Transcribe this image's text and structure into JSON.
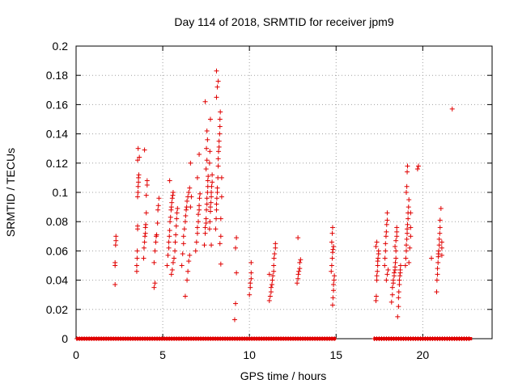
{
  "chart_data": {
    "type": "scatter",
    "title": "Day 114 of 2018, SRMTID for receiver jpm9",
    "xlabel": "GPS time / hours",
    "ylabel": "SRMTID / TECUs",
    "xlim": [
      0,
      24
    ],
    "ylim": [
      0,
      0.2
    ],
    "xticks": [
      0,
      5,
      10,
      15,
      20
    ],
    "xtick_labels": [
      "0",
      "5",
      "10",
      "15",
      "20"
    ],
    "yticks": [
      0,
      0.02,
      0.04,
      0.06,
      0.08,
      0.1,
      0.12,
      0.14,
      0.16,
      0.18,
      0.2
    ],
    "ytick_labels": [
      "0",
      "0.02",
      "0.04",
      "0.06",
      "0.08",
      "0.1",
      "0.12",
      "0.14",
      "0.16",
      "0.18",
      "0.2"
    ],
    "grid": true,
    "marker": "+",
    "color": "#e00000",
    "zero_baseline": [
      {
        "x_start": 0.05,
        "x_end": 14.95,
        "y": 0
      },
      {
        "x_start": 17.2,
        "x_end": 22.8,
        "y": 0
      }
    ],
    "series": [
      {
        "name": "SRMTID",
        "points": [
          [
            2.25,
            0.037
          ],
          [
            2.25,
            0.05
          ],
          [
            2.25,
            0.052
          ],
          [
            2.28,
            0.064
          ],
          [
            2.3,
            0.067
          ],
          [
            2.3,
            0.07
          ],
          [
            3.5,
            0.046
          ],
          [
            3.5,
            0.05
          ],
          [
            3.52,
            0.055
          ],
          [
            3.53,
            0.06
          ],
          [
            3.55,
            0.075
          ],
          [
            3.55,
            0.077
          ],
          [
            3.55,
            0.097
          ],
          [
            3.57,
            0.1
          ],
          [
            3.58,
            0.104
          ],
          [
            3.6,
            0.107
          ],
          [
            3.6,
            0.11
          ],
          [
            3.62,
            0.112
          ],
          [
            3.55,
            0.122
          ],
          [
            3.65,
            0.124
          ],
          [
            3.58,
            0.13
          ],
          [
            3.95,
            0.129
          ],
          [
            3.9,
            0.055
          ],
          [
            3.92,
            0.062
          ],
          [
            3.95,
            0.066
          ],
          [
            3.97,
            0.07
          ],
          [
            4.0,
            0.072
          ],
          [
            4.0,
            0.076
          ],
          [
            4.02,
            0.078
          ],
          [
            4.05,
            0.086
          ],
          [
            4.05,
            0.098
          ],
          [
            4.1,
            0.105
          ],
          [
            4.1,
            0.108
          ],
          [
            4.5,
            0.035
          ],
          [
            4.55,
            0.038
          ],
          [
            4.5,
            0.052
          ],
          [
            4.55,
            0.06
          ],
          [
            4.6,
            0.066
          ],
          [
            4.62,
            0.07
          ],
          [
            4.65,
            0.071
          ],
          [
            4.7,
            0.079
          ],
          [
            4.72,
            0.088
          ],
          [
            4.75,
            0.091
          ],
          [
            4.78,
            0.096
          ],
          [
            5.25,
            0.05
          ],
          [
            5.3,
            0.057
          ],
          [
            5.35,
            0.062
          ],
          [
            5.35,
            0.066
          ],
          [
            5.38,
            0.07
          ],
          [
            5.4,
            0.074
          ],
          [
            5.42,
            0.08
          ],
          [
            5.45,
            0.083
          ],
          [
            5.48,
            0.088
          ],
          [
            5.5,
            0.09
          ],
          [
            5.52,
            0.093
          ],
          [
            5.55,
            0.096
          ],
          [
            5.58,
            0.098
          ],
          [
            5.6,
            0.1
          ],
          [
            5.4,
            0.108
          ],
          [
            5.5,
            0.044
          ],
          [
            5.55,
            0.047
          ],
          [
            5.6,
            0.052
          ],
          [
            5.65,
            0.055
          ],
          [
            5.7,
            0.06
          ],
          [
            5.72,
            0.066
          ],
          [
            5.75,
            0.071
          ],
          [
            5.78,
            0.077
          ],
          [
            5.8,
            0.082
          ],
          [
            5.82,
            0.086
          ],
          [
            5.85,
            0.089
          ],
          [
            6.1,
            0.05
          ],
          [
            6.15,
            0.058
          ],
          [
            6.2,
            0.065
          ],
          [
            6.2,
            0.07
          ],
          [
            6.25,
            0.075
          ],
          [
            6.3,
            0.08
          ],
          [
            6.32,
            0.084
          ],
          [
            6.35,
            0.088
          ],
          [
            6.38,
            0.09
          ],
          [
            6.4,
            0.094
          ],
          [
            6.45,
            0.097
          ],
          [
            6.5,
            0.1
          ],
          [
            6.55,
            0.103
          ],
          [
            6.6,
            0.12
          ],
          [
            6.3,
            0.029
          ],
          [
            6.4,
            0.04
          ],
          [
            6.45,
            0.046
          ],
          [
            6.5,
            0.053
          ],
          [
            6.55,
            0.057
          ],
          [
            6.6,
            0.09
          ],
          [
            6.65,
            0.097
          ],
          [
            6.9,
            0.06
          ],
          [
            6.95,
            0.066
          ],
          [
            7.0,
            0.072
          ],
          [
            7.0,
            0.076
          ],
          [
            7.05,
            0.08
          ],
          [
            7.05,
            0.085
          ],
          [
            7.1,
            0.088
          ],
          [
            7.1,
            0.091
          ],
          [
            7.12,
            0.096
          ],
          [
            7.15,
            0.099
          ],
          [
            7.0,
            0.11
          ],
          [
            7.1,
            0.126
          ],
          [
            7.4,
            0.064
          ],
          [
            7.45,
            0.072
          ],
          [
            7.45,
            0.076
          ],
          [
            7.5,
            0.079
          ],
          [
            7.5,
            0.082
          ],
          [
            7.52,
            0.088
          ],
          [
            7.55,
            0.092
          ],
          [
            7.55,
            0.096
          ],
          [
            7.58,
            0.1
          ],
          [
            7.6,
            0.104
          ],
          [
            7.6,
            0.108
          ],
          [
            7.62,
            0.111
          ],
          [
            7.5,
            0.116
          ],
          [
            7.55,
            0.122
          ],
          [
            7.52,
            0.13
          ],
          [
            7.58,
            0.136
          ],
          [
            7.55,
            0.142
          ],
          [
            7.45,
            0.162
          ],
          [
            7.7,
            0.075
          ],
          [
            7.72,
            0.08
          ],
          [
            7.75,
            0.087
          ],
          [
            7.75,
            0.09
          ],
          [
            7.78,
            0.093
          ],
          [
            7.8,
            0.097
          ],
          [
            7.8,
            0.1
          ],
          [
            7.82,
            0.104
          ],
          [
            7.85,
            0.107
          ],
          [
            7.85,
            0.112
          ],
          [
            7.7,
            0.12
          ],
          [
            7.72,
            0.128
          ],
          [
            7.75,
            0.15
          ],
          [
            7.8,
            0.064
          ],
          [
            8.05,
            0.075
          ],
          [
            8.08,
            0.082
          ],
          [
            8.1,
            0.088
          ],
          [
            8.1,
            0.092
          ],
          [
            8.12,
            0.096
          ],
          [
            8.15,
            0.1
          ],
          [
            8.15,
            0.103
          ],
          [
            8.18,
            0.11
          ],
          [
            8.2,
            0.118
          ],
          [
            8.2,
            0.123
          ],
          [
            8.22,
            0.128
          ],
          [
            8.25,
            0.131
          ],
          [
            8.25,
            0.135
          ],
          [
            8.28,
            0.14
          ],
          [
            8.3,
            0.145
          ],
          [
            8.3,
            0.15
          ],
          [
            8.32,
            0.155
          ],
          [
            8.1,
            0.165
          ],
          [
            8.15,
            0.172
          ],
          [
            8.2,
            0.176
          ],
          [
            8.1,
            0.183
          ],
          [
            8.35,
            0.051
          ],
          [
            8.3,
            0.065
          ],
          [
            8.35,
            0.07
          ],
          [
            8.35,
            0.082
          ],
          [
            8.4,
            0.097
          ],
          [
            8.4,
            0.11
          ],
          [
            9.15,
            0.013
          ],
          [
            9.2,
            0.024
          ],
          [
            9.25,
            0.045
          ],
          [
            9.2,
            0.062
          ],
          [
            9.25,
            0.069
          ],
          [
            10.0,
            0.03
          ],
          [
            10.05,
            0.035
          ],
          [
            10.05,
            0.038
          ],
          [
            10.1,
            0.041
          ],
          [
            10.1,
            0.045
          ],
          [
            10.1,
            0.052
          ],
          [
            11.15,
            0.026
          ],
          [
            11.2,
            0.029
          ],
          [
            11.25,
            0.032
          ],
          [
            11.25,
            0.035
          ],
          [
            11.3,
            0.037
          ],
          [
            11.32,
            0.04
          ],
          [
            11.35,
            0.043
          ],
          [
            11.15,
            0.044
          ],
          [
            11.4,
            0.046
          ],
          [
            11.4,
            0.05
          ],
          [
            11.42,
            0.055
          ],
          [
            11.45,
            0.058
          ],
          [
            11.5,
            0.062
          ],
          [
            11.5,
            0.065
          ],
          [
            12.75,
            0.038
          ],
          [
            12.8,
            0.041
          ],
          [
            12.82,
            0.044
          ],
          [
            12.85,
            0.046
          ],
          [
            12.9,
            0.048
          ],
          [
            12.9,
            0.052
          ],
          [
            12.95,
            0.054
          ],
          [
            12.8,
            0.069
          ],
          [
            14.8,
            0.023
          ],
          [
            14.82,
            0.028
          ],
          [
            14.85,
            0.033
          ],
          [
            14.85,
            0.037
          ],
          [
            14.88,
            0.04
          ],
          [
            14.9,
            0.043
          ],
          [
            14.72,
            0.046
          ],
          [
            14.75,
            0.05
          ],
          [
            14.78,
            0.055
          ],
          [
            14.8,
            0.059
          ],
          [
            14.82,
            0.061
          ],
          [
            14.85,
            0.063
          ],
          [
            14.75,
            0.066
          ],
          [
            14.78,
            0.072
          ],
          [
            14.8,
            0.076
          ],
          [
            17.3,
            0.026
          ],
          [
            17.32,
            0.029
          ],
          [
            17.35,
            0.04
          ],
          [
            17.35,
            0.043
          ],
          [
            17.38,
            0.046
          ],
          [
            17.4,
            0.05
          ],
          [
            17.4,
            0.053
          ],
          [
            17.42,
            0.055
          ],
          [
            17.45,
            0.058
          ],
          [
            17.45,
            0.06
          ],
          [
            17.3,
            0.063
          ],
          [
            17.35,
            0.066
          ],
          [
            17.8,
            0.05
          ],
          [
            17.82,
            0.055
          ],
          [
            17.85,
            0.06
          ],
          [
            17.85,
            0.065
          ],
          [
            17.88,
            0.07
          ],
          [
            17.9,
            0.073
          ],
          [
            17.92,
            0.078
          ],
          [
            17.95,
            0.081
          ],
          [
            17.95,
            0.086
          ],
          [
            17.9,
            0.04
          ],
          [
            17.95,
            0.044
          ],
          [
            18.0,
            0.047
          ],
          [
            18.2,
            0.025
          ],
          [
            18.25,
            0.03
          ],
          [
            18.25,
            0.035
          ],
          [
            18.3,
            0.038
          ],
          [
            18.3,
            0.04
          ],
          [
            18.35,
            0.043
          ],
          [
            18.35,
            0.045
          ],
          [
            18.4,
            0.047
          ],
          [
            18.4,
            0.049
          ],
          [
            18.42,
            0.052
          ],
          [
            18.45,
            0.055
          ],
          [
            18.45,
            0.06
          ],
          [
            18.4,
            0.063
          ],
          [
            18.45,
            0.067
          ],
          [
            18.5,
            0.07
          ],
          [
            18.5,
            0.073
          ],
          [
            18.5,
            0.076
          ],
          [
            18.55,
            0.015
          ],
          [
            18.6,
            0.022
          ],
          [
            18.6,
            0.028
          ],
          [
            18.62,
            0.032
          ],
          [
            18.65,
            0.037
          ],
          [
            18.65,
            0.04
          ],
          [
            18.68,
            0.043
          ],
          [
            18.7,
            0.045
          ],
          [
            18.7,
            0.047
          ],
          [
            18.72,
            0.05
          ],
          [
            19.0,
            0.05
          ],
          [
            19.02,
            0.055
          ],
          [
            19.05,
            0.06
          ],
          [
            19.05,
            0.064
          ],
          [
            19.08,
            0.068
          ],
          [
            19.1,
            0.072
          ],
          [
            19.1,
            0.075
          ],
          [
            19.12,
            0.078
          ],
          [
            19.15,
            0.082
          ],
          [
            19.15,
            0.086
          ],
          [
            19.18,
            0.09
          ],
          [
            19.2,
            0.095
          ],
          [
            19.05,
            0.1
          ],
          [
            19.08,
            0.104
          ],
          [
            19.1,
            0.114
          ],
          [
            19.12,
            0.118
          ],
          [
            19.2,
            0.052
          ],
          [
            19.25,
            0.062
          ],
          [
            19.3,
            0.07
          ],
          [
            19.3,
            0.076
          ],
          [
            19.3,
            0.086
          ],
          [
            19.7,
            0.116
          ],
          [
            19.75,
            0.118
          ],
          [
            20.5,
            0.055
          ],
          [
            20.8,
            0.032
          ],
          [
            20.82,
            0.04
          ],
          [
            20.85,
            0.044
          ],
          [
            20.85,
            0.048
          ],
          [
            20.88,
            0.052
          ],
          [
            20.9,
            0.056
          ],
          [
            20.9,
            0.058
          ],
          [
            20.92,
            0.06
          ],
          [
            20.95,
            0.064
          ],
          [
            20.95,
            0.068
          ],
          [
            20.98,
            0.072
          ],
          [
            21.0,
            0.076
          ],
          [
            21.0,
            0.081
          ],
          [
            21.05,
            0.089
          ],
          [
            21.1,
            0.057
          ],
          [
            21.1,
            0.062
          ],
          [
            21.1,
            0.066
          ],
          [
            21.7,
            0.157
          ]
        ]
      }
    ]
  }
}
